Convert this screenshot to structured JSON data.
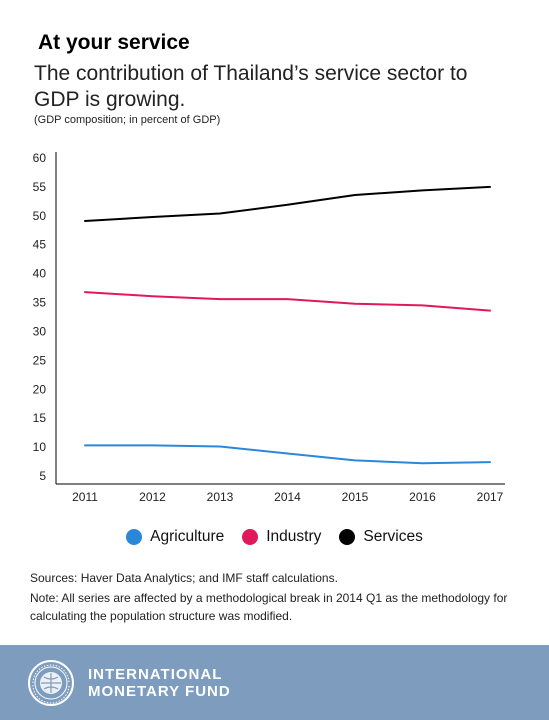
{
  "header": {
    "kicker": "At your service",
    "title": "The contribution of Thailand’s service sector to GDP is growing.",
    "subtitle": "(GDP composition; in percent of GDP)"
  },
  "chart_data": {
    "type": "line",
    "x": [
      "2011",
      "2012",
      "2013",
      "2014",
      "2015",
      "2016",
      "2017"
    ],
    "ylim": [
      5,
      60
    ],
    "yticks": [
      "60",
      "55",
      "50",
      "45",
      "40",
      "35",
      "30",
      "25",
      "20",
      "15",
      "10",
      "5"
    ],
    "grid": false,
    "legend_position": "bottom",
    "series": [
      {
        "name": "Agriculture",
        "color": "#2b88d8",
        "values": [
          10.3,
          10.3,
          10.1,
          8.9,
          7.7,
          7.2,
          7.4
        ]
      },
      {
        "name": "Industry",
        "color": "#e0185c",
        "values": [
          36.8,
          36.1,
          35.6,
          35.6,
          34.8,
          34.5,
          33.6
        ]
      },
      {
        "name": "Services",
        "color": "#000000",
        "values": [
          49.1,
          49.8,
          50.4,
          51.9,
          53.6,
          54.4,
          55.0
        ]
      }
    ]
  },
  "legend": {
    "items": [
      {
        "label": "Agriculture",
        "color": "#2b88d8"
      },
      {
        "label": "Industry",
        "color": "#e0185c"
      },
      {
        "label": "Services",
        "color": "#000000"
      }
    ]
  },
  "notes": {
    "sources": "Sources: Haver Data Analytics; and IMF staff calculations.",
    "note": "Note: All series are affected by a methodological break in 2014 Q1 as the methodology for calculating the population structure was modified."
  },
  "footer": {
    "logo_line1": "INTERNATIONAL",
    "logo_line2": "MONETARY FUND",
    "background_color": "#7d9cbe"
  }
}
